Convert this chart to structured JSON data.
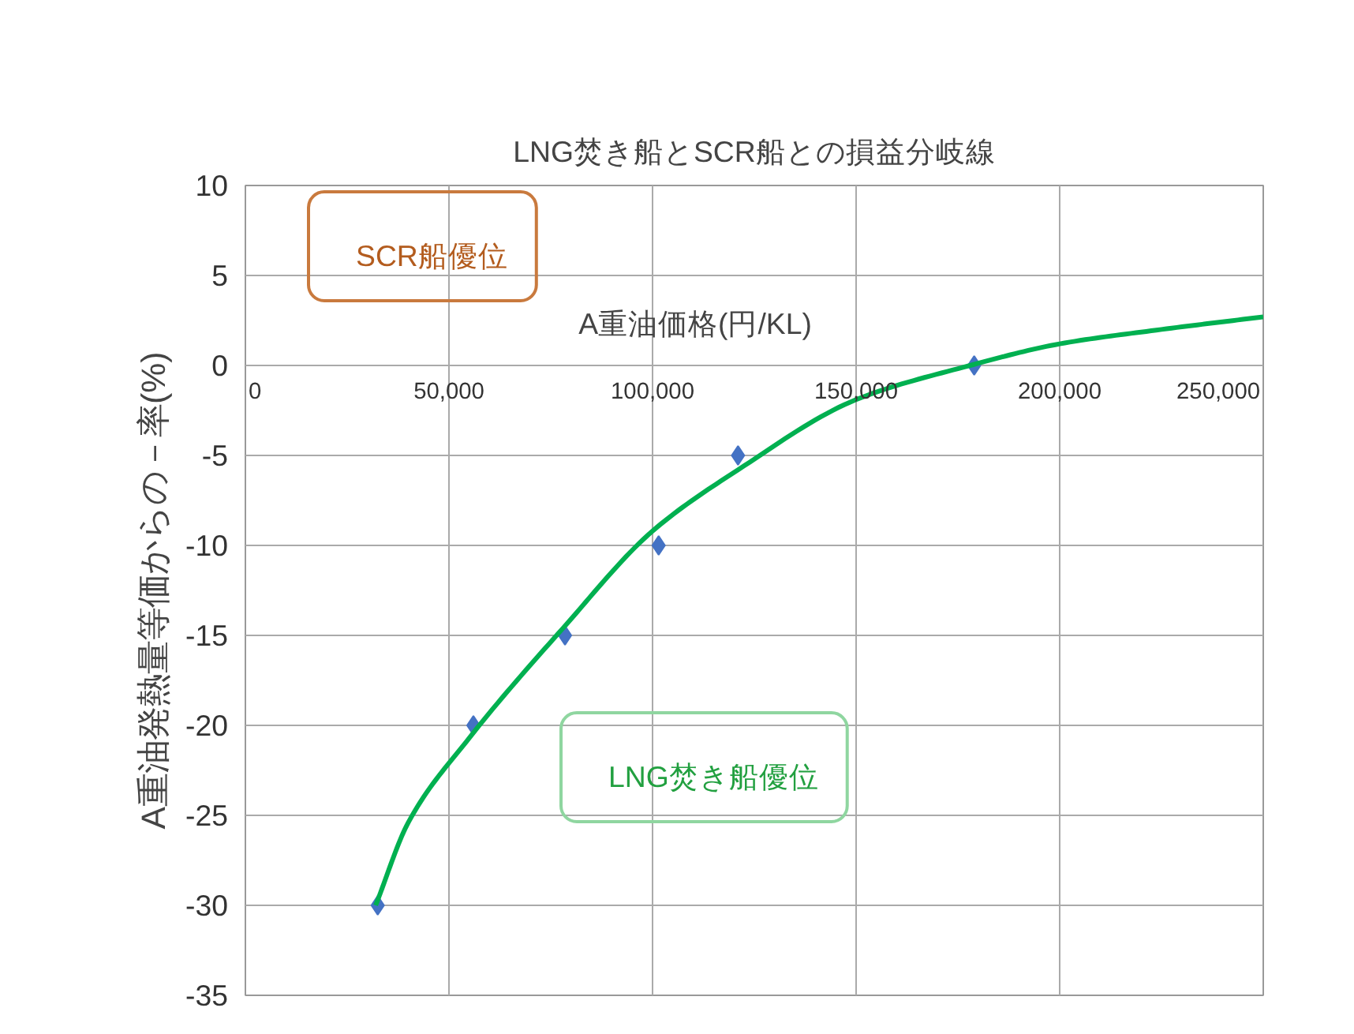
{
  "chart_data": {
    "type": "scatter",
    "title": "LNG焚き船とSCR船との損益分岐線",
    "xlabel": "A重油価格(円/KL)",
    "ylabel": "A重油発熱量等価からの－率(%)",
    "annotations": [
      "SCR船優位",
      "LNG焚き船優位"
    ],
    "xlim": [
      0,
      250000
    ],
    "xticks": [
      {
        "value": 0,
        "label": "0"
      },
      {
        "value": 50000,
        "label": "50,000"
      },
      {
        "value": 100000,
        "label": "100,000"
      },
      {
        "value": 150000,
        "label": "150,000"
      },
      {
        "value": 200000,
        "label": "200,000"
      },
      {
        "value": 250000,
        "label": "250,000"
      }
    ],
    "ylim": [
      -35,
      10
    ],
    "yticks": [
      -35,
      -30,
      -25,
      -20,
      -15,
      -10,
      -5,
      0,
      5,
      10
    ],
    "grid": true,
    "series": [
      {
        "type": "scatter",
        "marker": "diamond",
        "color": "#4472c4",
        "x": [
          32500,
          56000,
          78500,
          101500,
          121000,
          179000
        ],
        "values": [
          -30,
          -20,
          -15,
          -10,
          -5,
          0
        ]
      },
      {
        "type": "line",
        "marker": "none",
        "line_style": "solid",
        "color": "#00b050",
        "x": [
          32000,
          40000,
          55000,
          78000,
          100000,
          121000,
          150000,
          178000,
          200000,
          225000,
          250000
        ],
        "values": [
          -30,
          -25.4,
          -20.7,
          -14.6,
          -9.2,
          -5.8,
          -1.9,
          0,
          1.2,
          2.0,
          2.7
        ]
      }
    ]
  }
}
